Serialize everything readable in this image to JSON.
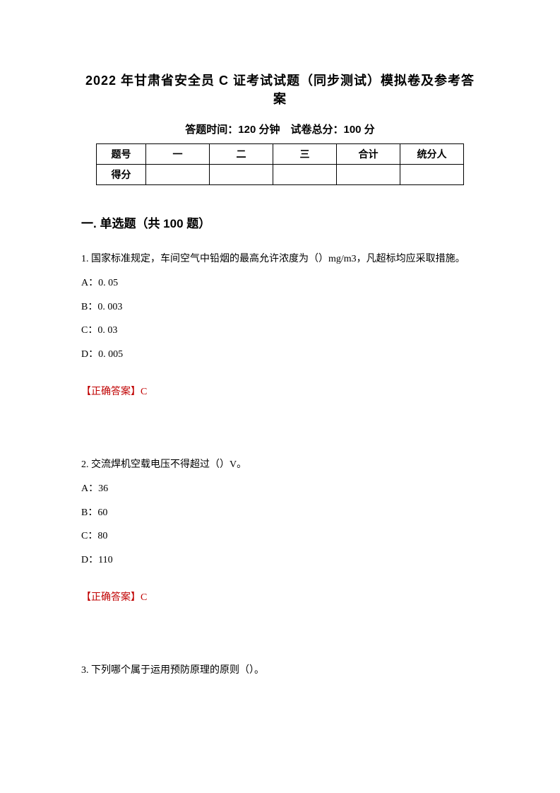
{
  "title": "2022 年甘肃省安全员 C 证考试试题（同步测试）模拟卷及参考答案",
  "subtitle": "答题时间：120 分钟　试卷总分：100 分",
  "table": {
    "row1": [
      "题号",
      "一",
      "二",
      "三",
      "合计",
      "统分人"
    ],
    "row2": [
      "得分",
      "",
      "",
      "",
      "",
      ""
    ]
  },
  "section_header": "一. 单选题（共 100 题）",
  "q1": {
    "text": "1. 国家标准规定，车间空气中铅烟的最高允许浓度为（）mg/m3，凡超标均应采取措施。",
    "a": "A：0. 05",
    "b": "B：0. 003",
    "c": "C：0. 03",
    "d": "D：0. 005",
    "answer": "【正确答案】C"
  },
  "q2": {
    "text": "2. 交流焊机空载电压不得超过（）V。",
    "a": "A：36",
    "b": "B：60",
    "c": "C：80",
    "d": "D：110",
    "answer": "【正确答案】C"
  },
  "q3": {
    "text": "3. 下列哪个属于运用预防原理的原则（）。"
  }
}
